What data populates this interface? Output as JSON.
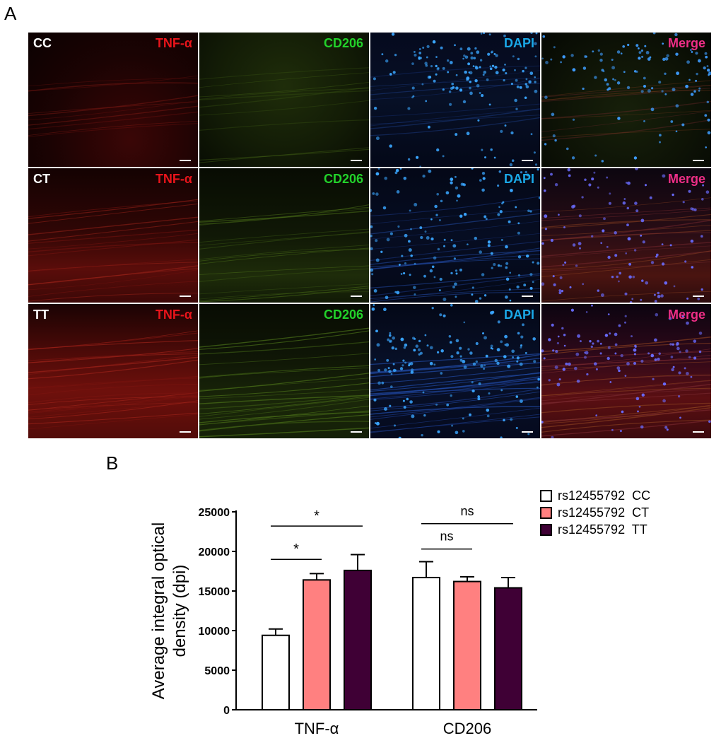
{
  "panel_a": {
    "letter": "A",
    "rows": [
      {
        "label": "CC",
        "stains": [
          "TNF-α",
          "CD206",
          "DAPI",
          "Merge"
        ]
      },
      {
        "label": "CT",
        "stains": [
          "TNF-α",
          "CD206",
          "DAPI",
          "Merge"
        ]
      },
      {
        "label": "TT",
        "stains": [
          "TNF-α",
          "CD206",
          "DAPI",
          "Merge"
        ]
      }
    ],
    "stain_colors": {
      "TNF-α": "#e8141b",
      "CD206": "#22d12a",
      "DAPI": "#1aa9e8",
      "Merge": "#ee2e86"
    }
  },
  "panel_b": {
    "letter": "B"
  },
  "chart_data": {
    "type": "bar",
    "categories": [
      "TNF-α",
      "CD206"
    ],
    "ylabel": "Average integral optical density (dpi)",
    "xlabel": "",
    "ylim": [
      0,
      25000
    ],
    "yticks": [
      0,
      5000,
      10000,
      15000,
      20000,
      25000
    ],
    "grid": false,
    "legend_position": "top-right",
    "series": [
      {
        "name": "rs12455792  CC",
        "color": "#ffffff",
        "values": [
          9400,
          16700
        ],
        "errors": [
          800,
          2000
        ]
      },
      {
        "name": "rs12455792  CT",
        "color": "#ff8080",
        "values": [
          16400,
          16200
        ],
        "errors": [
          800,
          600
        ]
      },
      {
        "name": "rs12455792  TT",
        "color": "#3f0035",
        "values": [
          17600,
          15400
        ],
        "errors": [
          2000,
          1300
        ]
      }
    ],
    "annotations": [
      {
        "text": "*",
        "category": "TNF-α",
        "from_series": 0,
        "to_series": 1,
        "level": 19000
      },
      {
        "text": "*",
        "category": "TNF-α",
        "from_series": 0,
        "to_series": 2,
        "level": 23200
      },
      {
        "text": "ns",
        "category": "CD206",
        "from_series": 0,
        "to_series": 1,
        "level": 20300
      },
      {
        "text": "ns",
        "category": "CD206",
        "from_series": 0,
        "to_series": 2,
        "level": 23500
      }
    ]
  }
}
